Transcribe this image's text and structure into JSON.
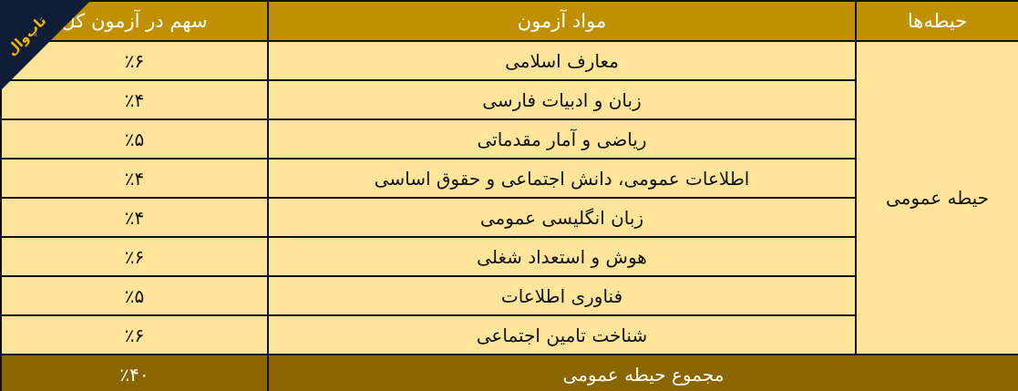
{
  "header": {
    "domain": "حیطه‌ها",
    "subject": "مواد آزمون",
    "share": "سهم در آزمون کل"
  },
  "domain_label": "حیطه عمومی",
  "rows": [
    {
      "subject": "معارف اسلامی",
      "share": "٪۶"
    },
    {
      "subject": "زبان و ادبیات فارسی",
      "share": "٪۴"
    },
    {
      "subject": "ریاضی و آمار مقدماتی",
      "share": "٪۵"
    },
    {
      "subject": "اطلاعات عمومی، دانش اجتماعی و حقوق اساسی",
      "share": "٪۴"
    },
    {
      "subject": "زبان انگلیسی عمومی",
      "share": "٪۴"
    },
    {
      "subject": "هوش و استعداد شغلی",
      "share": "٪۶"
    },
    {
      "subject": "فناوری اطلاعات",
      "share": "٪۵"
    },
    {
      "subject": "شناخت تامین اجتماعی",
      "share": "٪۶"
    }
  ],
  "total": {
    "label": "مجموع حیطه عمومی",
    "share": "٪۴۰"
  },
  "logo": {
    "text": "تاپ‌وال"
  },
  "colors": {
    "header": "#C09000",
    "body": "#FFE59A",
    "footer": "#8B6600",
    "logo_bg": "#0F1E36",
    "logo_text": "#F2B400"
  }
}
